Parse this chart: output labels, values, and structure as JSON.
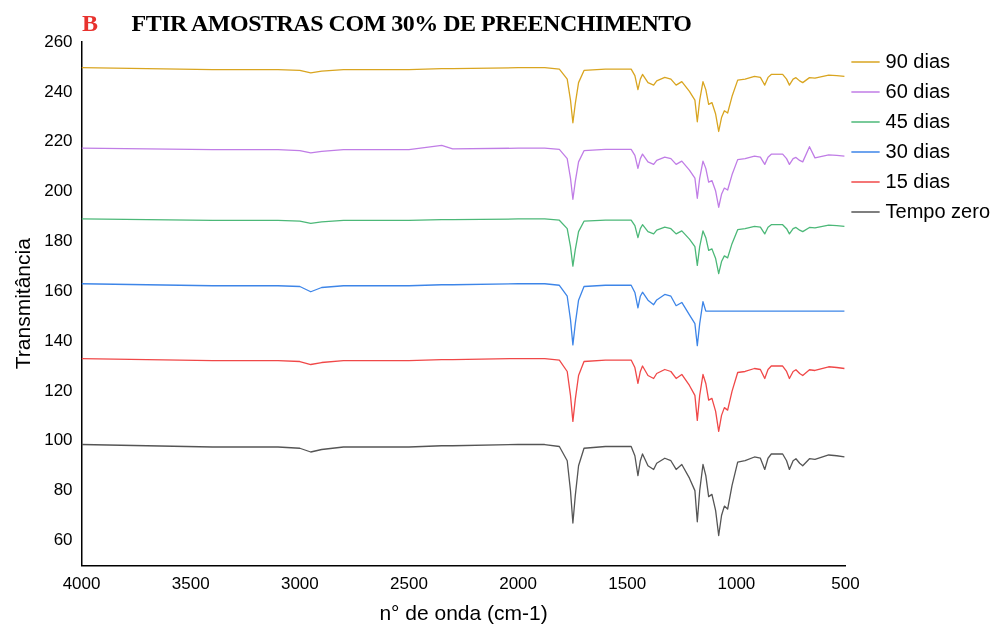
{
  "chart_data": {
    "type": "line",
    "title": "FTIR AMOSTRAS COM 30% DE PREENCHIMENTO",
    "annotations": [
      "B"
    ],
    "xlabel": "n° de onda (cm-1)",
    "ylabel": "Transmitância",
    "xlim": [
      4000,
      500
    ],
    "xticks": [
      4000,
      3500,
      3000,
      2500,
      2000,
      1500,
      1000,
      500
    ],
    "ylim": [
      50,
      260
    ],
    "yticks": [
      60,
      80,
      100,
      120,
      140,
      160,
      180,
      200,
      220,
      240,
      260
    ],
    "legend": "top right",
    "marker": "none",
    "x": [
      4000,
      3700,
      3400,
      3100,
      3000,
      2950,
      2900,
      2800,
      2500,
      2350,
      2300,
      2000,
      1878,
      1811,
      1775,
      1760,
      1749,
      1738,
      1723,
      1698,
      1600,
      1482,
      1465,
      1451,
      1440,
      1430,
      1405,
      1379,
      1365,
      1328,
      1300,
      1276,
      1250,
      1215,
      1190,
      1179,
      1168,
      1153,
      1140,
      1127,
      1112,
      1095,
      1081,
      1068,
      1055,
      1040,
      1020,
      994,
      960,
      917,
      890,
      870,
      855,
      840,
      788,
      770,
      757,
      740,
      727,
      710,
      696,
      665,
      640,
      577,
      540,
      505
    ],
    "series": [
      {
        "name": "90 dias",
        "color": "#d9a520",
        "values": [
          249.7,
          249.3,
          248.9,
          248.9,
          248.6,
          247.6,
          248.3,
          248.9,
          248.9,
          249.3,
          249.3,
          249.7,
          249.7,
          249.1,
          245.1,
          236.7,
          227.6,
          235.3,
          243.7,
          248.6,
          249.1,
          249.1,
          246.5,
          240.9,
          245.1,
          247.0,
          243.7,
          242.7,
          244.4,
          245.8,
          245.1,
          242.7,
          244.1,
          240.2,
          236.7,
          228.0,
          236.7,
          244.1,
          240.9,
          235.0,
          235.7,
          231.1,
          224.1,
          229.7,
          232.4,
          231.5,
          238.1,
          244.7,
          245.1,
          246.2,
          245.8,
          242.7,
          245.8,
          247.0,
          247.0,
          245.1,
          242.7,
          245.1,
          245.7,
          244.4,
          243.7,
          245.7,
          245.5,
          246.7,
          246.5,
          246.2
        ]
      },
      {
        "name": "60 dias",
        "color": "#c07de6",
        "values": [
          217.4,
          217.1,
          216.8,
          216.8,
          216.4,
          215.5,
          216.1,
          216.8,
          216.8,
          218.5,
          217.1,
          217.4,
          217.4,
          216.9,
          213.2,
          205.4,
          196.9,
          204.1,
          211.9,
          216.4,
          216.9,
          216.9,
          214.5,
          209.3,
          213.2,
          215.0,
          211.9,
          210.9,
          212.5,
          213.8,
          213.2,
          210.9,
          212.2,
          208.6,
          205.4,
          197.3,
          205.4,
          212.2,
          209.3,
          203.8,
          204.4,
          200.2,
          193.7,
          198.9,
          201.4,
          200.6,
          206.7,
          212.8,
          213.2,
          214.2,
          213.8,
          210.9,
          213.8,
          215.0,
          215.0,
          213.2,
          210.9,
          213.2,
          213.7,
          212.5,
          211.9,
          218.0,
          213.5,
          214.7,
          214.5,
          214.2
        ]
      },
      {
        "name": "45 dias",
        "color": "#4cb878",
        "values": [
          189.0,
          188.7,
          188.4,
          188.4,
          188.1,
          187.2,
          187.8,
          188.4,
          188.4,
          188.7,
          188.7,
          189.0,
          189.0,
          188.5,
          185.1,
          177.9,
          170.1,
          176.7,
          183.9,
          188.1,
          188.5,
          188.5,
          186.3,
          181.5,
          185.1,
          186.7,
          183.9,
          183.0,
          184.5,
          185.7,
          185.1,
          183.0,
          184.2,
          180.9,
          177.9,
          170.4,
          177.9,
          184.2,
          181.5,
          176.4,
          177.0,
          173.1,
          167.1,
          171.9,
          174.2,
          173.4,
          179.1,
          184.7,
          185.1,
          186.0,
          185.7,
          183.0,
          185.7,
          186.7,
          186.7,
          185.1,
          183.0,
          185.1,
          185.6,
          184.5,
          183.9,
          185.6,
          185.4,
          186.5,
          186.3,
          186.0
        ]
      },
      {
        "name": "30 dias",
        "color": "#3d85e8",
        "values": [
          163.0,
          162.6,
          162.2,
          162.2,
          161.9,
          159.8,
          161.5,
          162.2,
          162.2,
          162.6,
          162.6,
          163.0,
          163.0,
          162.4,
          158.0,
          148.6,
          138.5,
          147.0,
          156.4,
          161.9,
          162.4,
          162.4,
          159.5,
          153.3,
          158.0,
          159.6,
          156.4,
          154.6,
          156.5,
          158.7,
          158.0,
          154.2,
          155.5,
          150.5,
          147.0,
          138.2,
          147.0,
          155.8,
          152,
          152,
          152,
          152,
          152,
          152,
          152,
          152,
          152,
          152,
          152,
          152,
          152,
          152,
          152,
          152,
          152,
          152,
          152,
          152,
          152,
          152,
          152,
          152,
          152,
          152,
          152,
          152
        ]
      },
      {
        "name": "15 dias",
        "color": "#f04848",
        "values": [
          133.0,
          132.6,
          132.2,
          132.2,
          131.8,
          130.6,
          131.4,
          132.2,
          132.2,
          132.6,
          132.6,
          133.0,
          133.0,
          132.4,
          127.8,
          118.2,
          107.8,
          116.6,
          126.2,
          131.8,
          132.4,
          132.4,
          129.4,
          123.0,
          127.8,
          130.0,
          126.2,
          125.0,
          127.0,
          128.6,
          127.8,
          125.0,
          126.6,
          122.2,
          118.2,
          108.2,
          118.2,
          126.6,
          123.0,
          116.3,
          117.0,
          111.8,
          103.8,
          110.2,
          113.3,
          112.3,
          119.8,
          127.4,
          127.8,
          129.0,
          128.6,
          125.0,
          128.6,
          130.0,
          130.0,
          127.8,
          125.0,
          127.8,
          128.5,
          127.0,
          126.2,
          128.5,
          128.2,
          129.7,
          129.4,
          129.0
        ]
      },
      {
        "name": "Tempo zero",
        "color": "#555555",
        "values": [
          98.5,
          98,
          97.5,
          97.5,
          97,
          95.5,
          96.5,
          97.5,
          97.5,
          98,
          98,
          98.5,
          98.5,
          97.7,
          92,
          80,
          67,
          78,
          90,
          97,
          97.7,
          97.7,
          94,
          86,
          92,
          94.7,
          90,
          88.5,
          91,
          93,
          92,
          88.5,
          90.5,
          85,
          80,
          67.5,
          80,
          90.5,
          86,
          77.6,
          78.5,
          72,
          62,
          70,
          73.8,
          72.6,
          82,
          91.4,
          92,
          93.5,
          93,
          88.5,
          93,
          94.7,
          94.7,
          92,
          88.5,
          92,
          92.8,
          91,
          90,
          92.8,
          92.5,
          94.3,
          94,
          93.5
        ]
      }
    ]
  }
}
